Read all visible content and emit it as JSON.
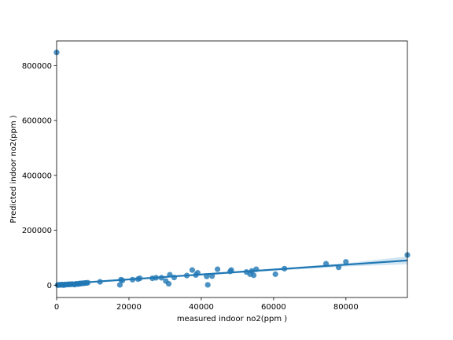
{
  "chart_data": {
    "type": "scatter",
    "title": "",
    "xlabel": "measured indoor no2(ppm  )",
    "ylabel": "Predicted indoor no2(ppm  )",
    "xlim": [
      0,
      97000
    ],
    "ylim": [
      -45000,
      890000
    ],
    "xticks": [
      0,
      20000,
      40000,
      60000,
      80000
    ],
    "yticks": [
      0,
      200000,
      400000,
      600000,
      800000
    ],
    "grid": false,
    "colors": {
      "points": "#1f77b4",
      "line": "#1f77b4",
      "band": "#a6cbe6"
    },
    "points": [
      [
        0,
        848000
      ],
      [
        300,
        500
      ],
      [
        500,
        200
      ],
      [
        900,
        1500
      ],
      [
        1200,
        800
      ],
      [
        1500,
        2000
      ],
      [
        1800,
        1200
      ],
      [
        2000,
        0
      ],
      [
        2300,
        2500
      ],
      [
        2600,
        1800
      ],
      [
        3000,
        3000
      ],
      [
        3300,
        2200
      ],
      [
        3600,
        3500
      ],
      [
        4000,
        2800
      ],
      [
        4300,
        4000
      ],
      [
        4600,
        3200
      ],
      [
        5000,
        2000
      ],
      [
        5300,
        4500
      ],
      [
        5600,
        5000
      ],
      [
        6000,
        3800
      ],
      [
        6300,
        6000
      ],
      [
        6600,
        5500
      ],
      [
        7000,
        7000
      ],
      [
        7400,
        6500
      ],
      [
        7800,
        8000
      ],
      [
        8200,
        7500
      ],
      [
        8600,
        9000
      ],
      [
        12000,
        12000
      ],
      [
        17500,
        1000
      ],
      [
        17800,
        20000
      ],
      [
        18200,
        17000
      ],
      [
        21000,
        20000
      ],
      [
        22500,
        22000
      ],
      [
        23000,
        25000
      ],
      [
        26500,
        25000
      ],
      [
        27500,
        27000
      ],
      [
        29000,
        27000
      ],
      [
        30200,
        15000
      ],
      [
        31000,
        5000
      ],
      [
        31300,
        38000
      ],
      [
        32500,
        28000
      ],
      [
        36000,
        35000
      ],
      [
        37500,
        55000
      ],
      [
        38500,
        37000
      ],
      [
        39000,
        45000
      ],
      [
        41500,
        32000
      ],
      [
        41800,
        1000
      ],
      [
        43000,
        33000
      ],
      [
        44500,
        58000
      ],
      [
        48000,
        50000
      ],
      [
        48300,
        55000
      ],
      [
        52500,
        48000
      ],
      [
        53500,
        40000
      ],
      [
        54000,
        52000
      ],
      [
        54500,
        36000
      ],
      [
        55200,
        58000
      ],
      [
        60500,
        40000
      ],
      [
        63000,
        60000
      ],
      [
        74500,
        78000
      ],
      [
        78000,
        65000
      ],
      [
        80000,
        85000
      ],
      [
        97000,
        110000
      ]
    ],
    "regression": {
      "x": [
        0,
        97000
      ],
      "y": [
        3000,
        90000
      ]
    },
    "confidence_band": {
      "x": [
        0,
        20000,
        40000,
        60000,
        80000,
        97000
      ],
      "upper": [
        6000,
        22000,
        40000,
        60000,
        80000,
        105000
      ],
      "lower": [
        0,
        18000,
        35000,
        52000,
        68000,
        76000
      ]
    }
  }
}
